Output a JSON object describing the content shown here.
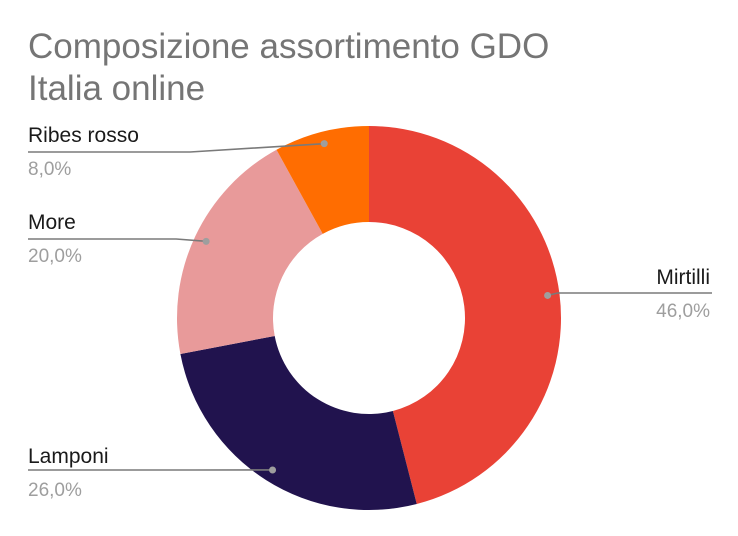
{
  "chart_data": {
    "type": "pie",
    "donut": true,
    "title_lines": [
      "Composizione assortimento GDO",
      "Italia online"
    ],
    "slices": [
      {
        "label": "Mirtilli",
        "value": 46.0,
        "value_label": "46,0%",
        "color": "#e94236"
      },
      {
        "label": "Lamponi",
        "value": 26.0,
        "value_label": "26,0%",
        "color": "#21134e"
      },
      {
        "label": "More",
        "value": 20.0,
        "value_label": "20,0%",
        "color": "#e89a9a"
      },
      {
        "label": "Ribes rosso",
        "value": 8.0,
        "value_label": "8,0%",
        "color": "#ff6d01"
      }
    ],
    "legend": "none",
    "labels": "outside-with-leader-lines"
  }
}
